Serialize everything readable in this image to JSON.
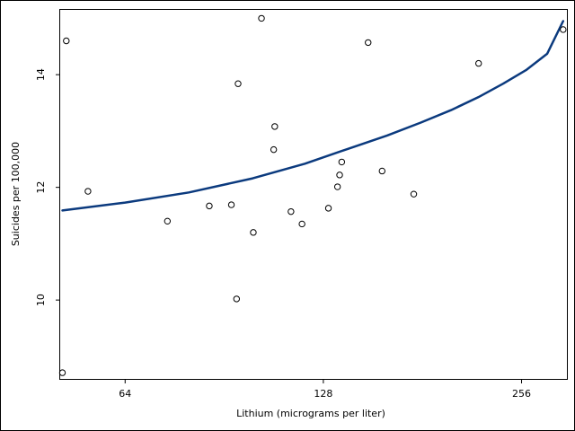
{
  "chart_data": {
    "type": "scatter",
    "xlabel": "Lithium (micrograms per liter)",
    "ylabel": "Suicides per 100,000",
    "x_scale": "log2",
    "xlim": [
      51,
      300
    ],
    "ylim": [
      8.6,
      15.15
    ],
    "x_ticks": [
      64,
      128,
      256
    ],
    "x_tick_labels": [
      "64",
      "128",
      "256"
    ],
    "y_ticks": [
      10,
      12,
      14
    ],
    "y_tick_labels": [
      "10",
      "12",
      "14"
    ],
    "grid": false,
    "legend": "none",
    "colors": {
      "fit_line": "#0b3a7e",
      "points": "#000000",
      "frame": "#000000"
    },
    "scatter_points": [
      {
        "x": 51.4,
        "y": 8.71
      },
      {
        "x": 52.1,
        "y": 14.6
      },
      {
        "x": 56.2,
        "y": 11.93
      },
      {
        "x": 74.2,
        "y": 11.4
      },
      {
        "x": 85.9,
        "y": 11.67
      },
      {
        "x": 92.8,
        "y": 11.69
      },
      {
        "x": 94.5,
        "y": 10.02
      },
      {
        "x": 95.0,
        "y": 13.84
      },
      {
        "x": 100.2,
        "y": 11.2
      },
      {
        "x": 103.1,
        "y": 15.0
      },
      {
        "x": 107.6,
        "y": 12.67
      },
      {
        "x": 108.0,
        "y": 13.08
      },
      {
        "x": 114.3,
        "y": 11.57
      },
      {
        "x": 118.8,
        "y": 11.35
      },
      {
        "x": 130.3,
        "y": 11.63
      },
      {
        "x": 134.5,
        "y": 12.01
      },
      {
        "x": 135.5,
        "y": 12.22
      },
      {
        "x": 136.5,
        "y": 12.45
      },
      {
        "x": 149.7,
        "y": 14.57
      },
      {
        "x": 157.2,
        "y": 12.29
      },
      {
        "x": 175.6,
        "y": 11.88
      },
      {
        "x": 220.3,
        "y": 14.2
      },
      {
        "x": 296.1,
        "y": 14.8
      }
    ],
    "fit_line": {
      "x": [
        51.4,
        64,
        80,
        100,
        120,
        140,
        160,
        180,
        200,
        220,
        240,
        260,
        280,
        296.1
      ],
      "y": [
        11.59,
        11.73,
        11.91,
        12.16,
        12.42,
        12.69,
        12.92,
        13.15,
        13.37,
        13.6,
        13.84,
        14.08,
        14.37,
        14.95
      ]
    }
  }
}
